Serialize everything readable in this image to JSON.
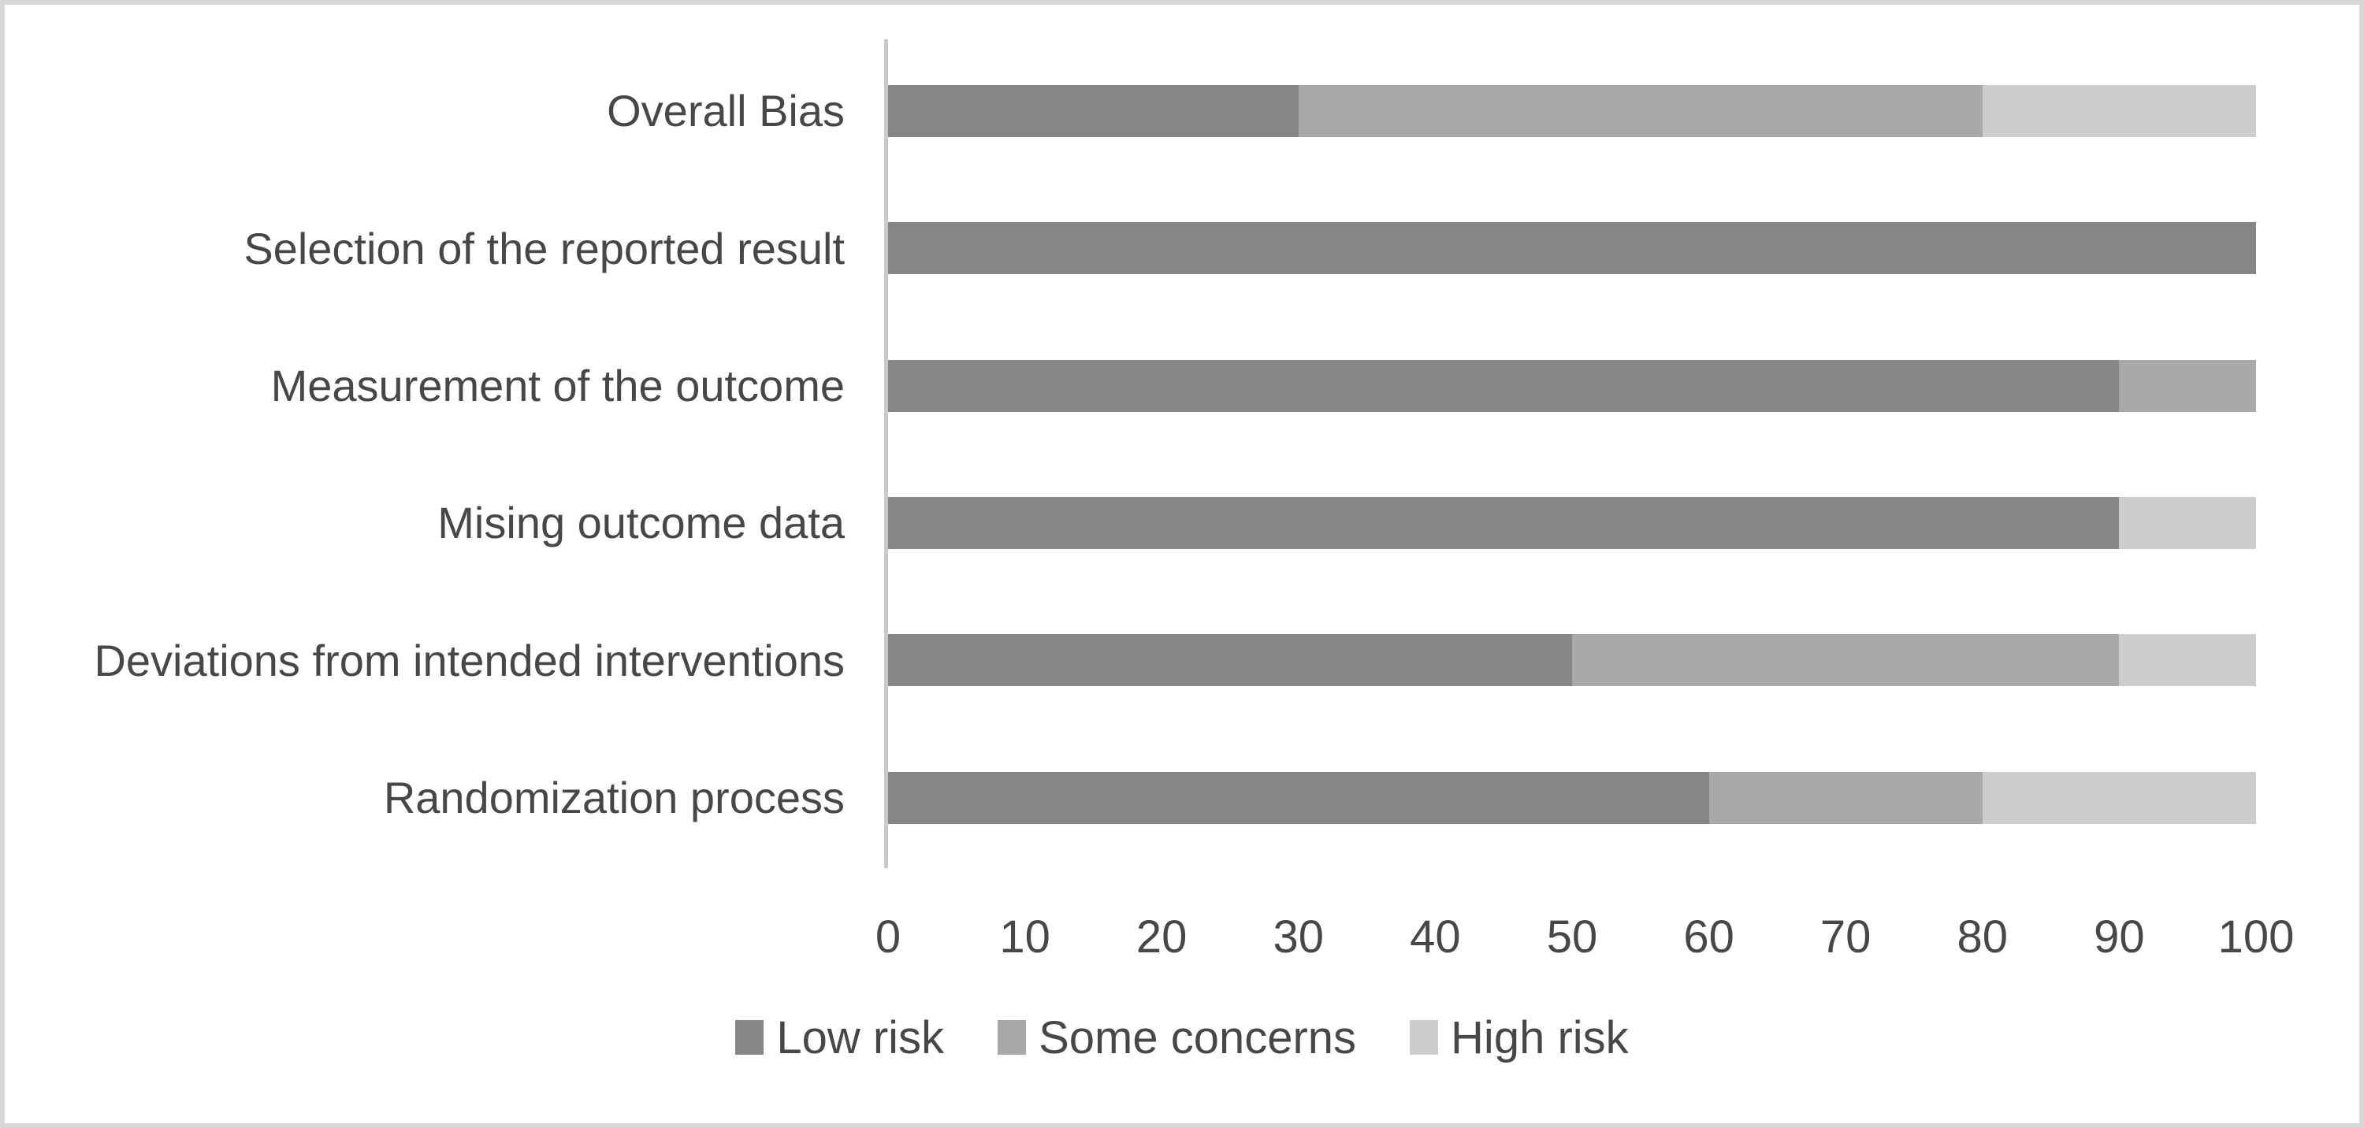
{
  "chart_data": {
    "type": "bar",
    "orientation": "horizontal",
    "stacked": true,
    "title": "",
    "xlabel": "",
    "ylabel": "",
    "category_order": "top-to-bottom",
    "categories": [
      "Overall Bias",
      "Selection of the reported result",
      "Measurement of the outcome",
      "Mising outcome data",
      "Deviations from intended interventions",
      "Randomization process"
    ],
    "series": [
      {
        "name": "Low risk",
        "color": "#868686",
        "values": [
          30,
          100,
          90,
          90,
          50,
          60
        ]
      },
      {
        "name": "Some concerns",
        "color": "#a9a9a9",
        "values": [
          50,
          0,
          10,
          0,
          40,
          20
        ]
      },
      {
        "name": "High risk",
        "color": "#cdcdcd",
        "values": [
          20,
          0,
          0,
          10,
          10,
          20
        ]
      }
    ],
    "xlim": [
      0,
      100
    ],
    "x_ticks": [
      0,
      10,
      20,
      30,
      40,
      50,
      60,
      70,
      80,
      90,
      100
    ],
    "grid": false,
    "legend_position": "bottom-center"
  },
  "colors": {
    "background": "#ffffff",
    "figure_border": "#d8d8d8",
    "axis_line": "#c9c9c9",
    "text": "#474747"
  }
}
